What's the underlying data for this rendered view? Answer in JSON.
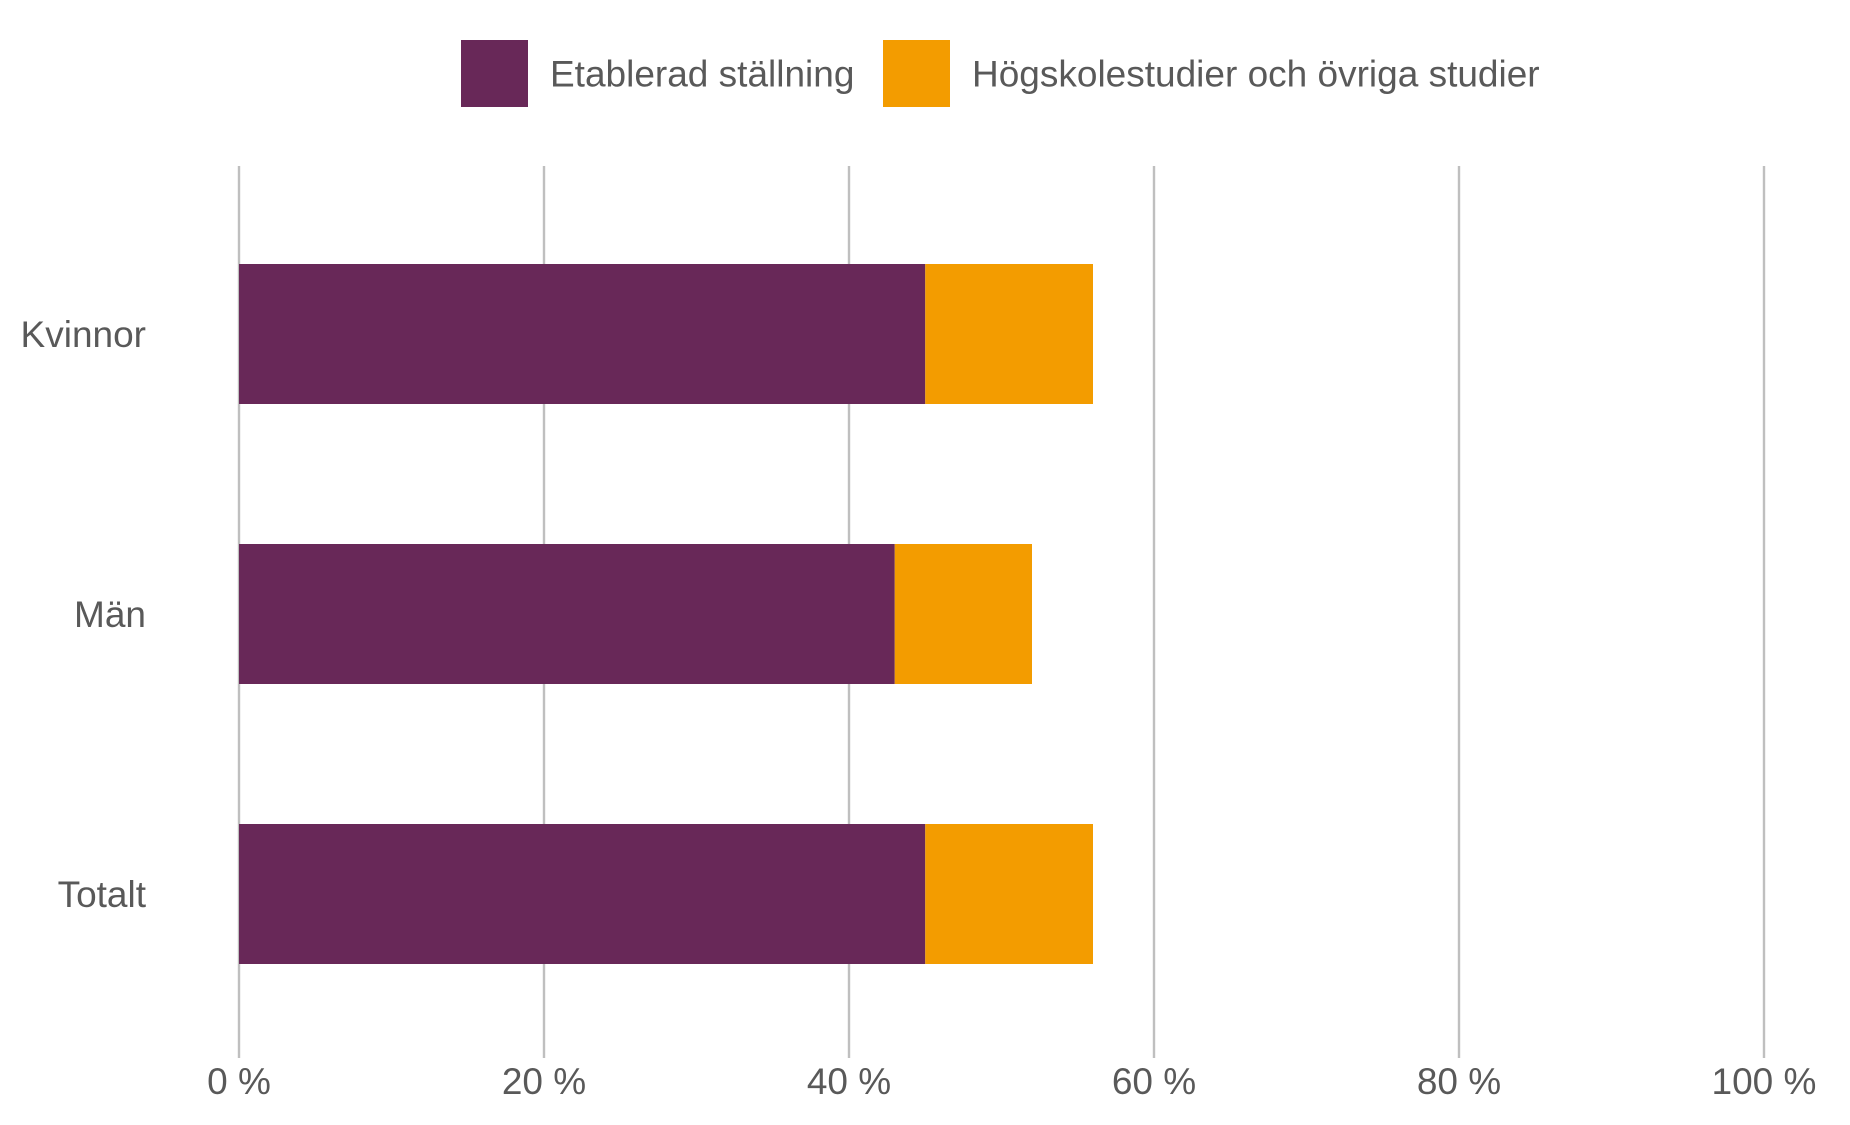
{
  "chart_data": {
    "type": "bar",
    "orientation": "horizontal",
    "stacked": true,
    "categories": [
      "Kvinnor",
      "Män",
      "Totalt"
    ],
    "series": [
      {
        "name": "Etablerad ställning",
        "values": [
          45,
          43,
          45
        ],
        "color": "#682858"
      },
      {
        "name": "Högskolestudier och övriga studier",
        "values": [
          11,
          9,
          11
        ],
        "color": "#f39c00"
      }
    ],
    "xlim": [
      0,
      100
    ],
    "xticks": [
      0,
      20,
      40,
      60,
      80,
      100
    ],
    "xtick_labels": [
      "0 %",
      "20 %",
      "40 %",
      "60 %",
      "80 %",
      "100 %"
    ],
    "grid": true,
    "legend_position": "top-center",
    "title": "",
    "xlabel": "",
    "ylabel": ""
  }
}
